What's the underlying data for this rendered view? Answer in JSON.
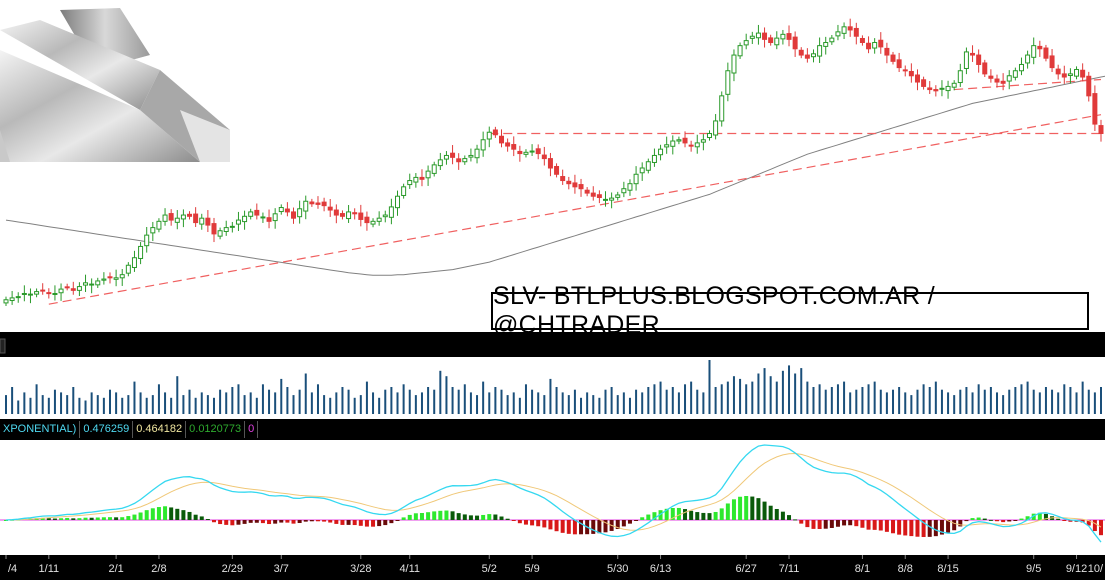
{
  "watermark": "SLV- BTLPLUS.BLOGSPOT.COM.AR / @CHTRADER",
  "macd": {
    "label": "XPONENTIAL)",
    "value": "0.476259",
    "avg": "0.464182",
    "diff": "0.0120773",
    "zero": "0",
    "colors": {
      "value": "#4fd8f0",
      "avg": "#f0e6a0",
      "diff": "#2eaa2e",
      "zero": "#e040e0"
    }
  },
  "colors": {
    "up": "#2a9a2a",
    "down": "#e03a3a",
    "ma": "#808080",
    "trend": "#f06060",
    "volume": "#1a4f7a",
    "hist_up_strong": "#2ee82e",
    "hist_up_weak": "#0a5a0a",
    "hist_down_strong": "#d81818",
    "hist_down_weak": "#6a0a0a",
    "macd_line": "#35d8f0",
    "signal_line": "#f0c878",
    "zero_line": "#e040e0"
  },
  "chart_data": {
    "type": "candlestick",
    "x_labels": [
      "/4",
      "1/11",
      "2/1",
      "2/8",
      "2/29",
      "3/7",
      "3/28",
      "4/11",
      "5/2",
      "5/9",
      "5/30",
      "6/13",
      "6/27",
      "7/11",
      "8/1",
      "8/8",
      "8/15",
      "9/5",
      "9/12",
      "10/"
    ],
    "x_label_index": [
      0,
      7,
      18,
      25,
      37,
      45,
      58,
      66,
      79,
      86,
      100,
      107,
      121,
      128,
      140,
      147,
      154,
      168,
      175,
      189
    ],
    "price_close": [
      13.95,
      13.98,
      14.0,
      14.05,
      14.04,
      14.08,
      14.1,
      14.06,
      14.05,
      14.12,
      14.15,
      14.1,
      14.16,
      14.22,
      14.2,
      14.25,
      14.28,
      14.3,
      14.3,
      14.35,
      14.5,
      14.62,
      14.8,
      14.98,
      15.1,
      15.2,
      15.3,
      15.22,
      15.25,
      15.3,
      15.28,
      15.18,
      15.25,
      15.14,
      15.0,
      15.05,
      15.1,
      15.12,
      15.22,
      15.28,
      15.35,
      15.3,
      15.27,
      15.2,
      15.32,
      15.42,
      15.35,
      15.25,
      15.4,
      15.52,
      15.48,
      15.47,
      15.45,
      15.38,
      15.3,
      15.28,
      15.35,
      15.32,
      15.23,
      15.18,
      15.2,
      15.25,
      15.3,
      15.43,
      15.6,
      15.75,
      15.85,
      15.9,
      15.87,
      16.0,
      16.1,
      16.18,
      16.25,
      16.22,
      16.15,
      16.2,
      16.25,
      16.35,
      16.5,
      16.62,
      16.58,
      16.45,
      16.4,
      16.35,
      16.28,
      16.3,
      16.32,
      16.28,
      16.2,
      16.05,
      15.95,
      15.85,
      15.8,
      15.75,
      15.72,
      15.65,
      15.6,
      15.58,
      15.55,
      15.57,
      15.62,
      15.72,
      15.8,
      15.95,
      16.05,
      16.15,
      16.25,
      16.35,
      16.42,
      16.48,
      16.5,
      16.45,
      16.4,
      16.45,
      16.5,
      16.6,
      16.8,
      17.2,
      17.6,
      17.85,
      18.0,
      18.08,
      18.15,
      18.2,
      18.1,
      18.05,
      18.12,
      18.18,
      18.1,
      17.95,
      17.85,
      17.8,
      17.87,
      18.0,
      18.05,
      18.12,
      18.22,
      18.3,
      18.25,
      18.15,
      18.05,
      17.95,
      18.05,
      17.98,
      17.85,
      17.75,
      17.65,
      17.6,
      17.52,
      17.42,
      17.35,
      17.3,
      17.28,
      17.32,
      17.35,
      17.4,
      17.6,
      17.9,
      17.85,
      17.7,
      17.55,
      17.48,
      17.42,
      17.4,
      17.52,
      17.6,
      17.7,
      17.85,
      18.0,
      17.95,
      17.8,
      17.65,
      17.55,
      17.5,
      17.55,
      17.62,
      17.5,
      17.2,
      16.75,
      16.6
    ],
    "ma": [
      15.22,
      15.205,
      15.19,
      15.175,
      15.16,
      15.145,
      15.13,
      15.115,
      15.1,
      15.085,
      15.07,
      15.055,
      15.04,
      15.025,
      15.01,
      14.995,
      14.98,
      14.965,
      14.95,
      14.935,
      14.92,
      14.905,
      14.89,
      14.875,
      14.86,
      14.845,
      14.83,
      14.815,
      14.8,
      14.785,
      14.77,
      14.755,
      14.74,
      14.725,
      14.71,
      14.695,
      14.68,
      14.665,
      14.65,
      14.635,
      14.62,
      14.605,
      14.59,
      14.575,
      14.56,
      14.545,
      14.53,
      14.515,
      14.5,
      14.485,
      14.47,
      14.455,
      14.44,
      14.425,
      14.41,
      14.395,
      14.38,
      14.37,
      14.36,
      14.35,
      14.34,
      14.34,
      14.34,
      14.34,
      14.35,
      14.35,
      14.36,
      14.37,
      14.38,
      14.39,
      14.4,
      14.41,
      14.42,
      14.43,
      14.45,
      14.47,
      14.49,
      14.51,
      14.53,
      14.55,
      14.58,
      14.61,
      14.64,
      14.67,
      14.7,
      14.73,
      14.76,
      14.79,
      14.82,
      14.85,
      14.88,
      14.91,
      14.94,
      14.97,
      15.0,
      15.03,
      15.06,
      15.09,
      15.12,
      15.15,
      15.18,
      15.21,
      15.24,
      15.27,
      15.3,
      15.33,
      15.36,
      15.39,
      15.42,
      15.45,
      15.48,
      15.51,
      15.54,
      15.57,
      15.6,
      15.63,
      15.67,
      15.71,
      15.75,
      15.79,
      15.83,
      15.87,
      15.91,
      15.95,
      15.99,
      16.03,
      16.07,
      16.11,
      16.15,
      16.19,
      16.23,
      16.27,
      16.3,
      16.33,
      16.36,
      16.39,
      16.42,
      16.45,
      16.48,
      16.51,
      16.54,
      16.57,
      16.6,
      16.63,
      16.66,
      16.69,
      16.72,
      16.75,
      16.78,
      16.81,
      16.84,
      16.87,
      16.9,
      16.93,
      16.96,
      16.99,
      17.02,
      17.05,
      17.08,
      17.1,
      17.12,
      17.14,
      17.16,
      17.18,
      17.2,
      17.22,
      17.24,
      17.26,
      17.28,
      17.3,
      17.32,
      17.34,
      17.36,
      17.38,
      17.4,
      17.42,
      17.44,
      17.46,
      17.48,
      17.5,
      17.52,
      17.54,
      17.56,
      17.58
    ],
    "volume": [
      0.35,
      0.5,
      0.25,
      0.4,
      0.3,
      0.55,
      0.35,
      0.3,
      0.45,
      0.4,
      0.35,
      0.5,
      0.3,
      0.25,
      0.4,
      0.35,
      0.3,
      0.45,
      0.4,
      0.3,
      0.35,
      0.6,
      0.4,
      0.3,
      0.35,
      0.55,
      0.4,
      0.3,
      0.7,
      0.35,
      0.45,
      0.3,
      0.4,
      0.35,
      0.3,
      0.45,
      0.4,
      0.5,
      0.55,
      0.35,
      0.4,
      0.3,
      0.55,
      0.45,
      0.4,
      0.65,
      0.5,
      0.35,
      0.45,
      0.75,
      0.4,
      0.55,
      0.35,
      0.3,
      0.4,
      0.5,
      0.45,
      0.3,
      0.35,
      0.6,
      0.4,
      0.3,
      0.45,
      0.5,
      0.4,
      0.55,
      0.45,
      0.35,
      0.4,
      0.5,
      0.45,
      0.8,
      0.7,
      0.5,
      0.45,
      0.55,
      0.4,
      0.35,
      0.6,
      0.4,
      0.5,
      0.45,
      0.35,
      0.4,
      0.3,
      0.55,
      0.45,
      0.4,
      0.35,
      0.65,
      0.5,
      0.4,
      0.35,
      0.45,
      0.3,
      0.4,
      0.35,
      0.3,
      0.45,
      0.5,
      0.35,
      0.4,
      0.3,
      0.45,
      0.4,
      0.5,
      0.55,
      0.6,
      0.45,
      0.5,
      0.4,
      0.55,
      0.6,
      0.45,
      0.4,
      1.0,
      0.5,
      0.55,
      0.6,
      0.7,
      0.65,
      0.55,
      0.6,
      0.75,
      0.85,
      0.7,
      0.6,
      0.8,
      0.9,
      0.75,
      0.85,
      0.6,
      0.5,
      0.55,
      0.45,
      0.5,
      0.55,
      0.6,
      0.4,
      0.45,
      0.5,
      0.55,
      0.6,
      0.45,
      0.4,
      0.45,
      0.5,
      0.4,
      0.35,
      0.45,
      0.55,
      0.5,
      0.6,
      0.45,
      0.4,
      0.35,
      0.45,
      0.5,
      0.4,
      0.55,
      0.45,
      0.5,
      0.4,
      0.35,
      0.45,
      0.5,
      0.55,
      0.6,
      0.45,
      0.4,
      0.5,
      0.45,
      0.4,
      0.55,
      0.5,
      0.4,
      0.6,
      0.45,
      0.4,
      0.5,
      0.45,
      0.55,
      0.75,
      0.65,
      0.6
    ],
    "ylim": [
      13.5,
      18.6
    ]
  }
}
